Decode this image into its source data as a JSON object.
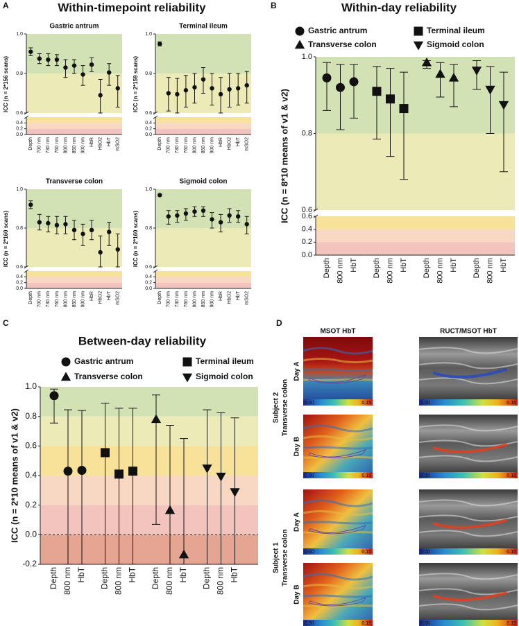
{
  "figure": {
    "panel_labels": [
      "A",
      "B",
      "C",
      "D"
    ],
    "group_title": "Within-timepoint reliability"
  },
  "chart_data": [
    {
      "type": "errorbar",
      "title": "Gastric antrum",
      "ylabel": "ICC (n = 2*156 scans)",
      "categories": [
        "Depth",
        "700 nm",
        "730 nm",
        "760 nm",
        "800 nm",
        "850 nm",
        "900 nm",
        "HbR",
        "HbO2",
        "HbT",
        "mSO2"
      ],
      "series": [
        {
          "marker": "circle",
          "color": "#111111",
          "values": [
            0.91,
            0.875,
            0.87,
            0.87,
            0.83,
            0.84,
            0.795,
            0.845,
            0.69,
            0.805,
            0.725
          ],
          "lower": [
            0.89,
            0.85,
            0.84,
            0.84,
            0.78,
            0.8,
            0.74,
            0.81,
            0.6,
            0.74,
            0.63
          ],
          "upper": [
            0.93,
            0.9,
            0.9,
            0.895,
            0.87,
            0.87,
            0.84,
            0.88,
            0.77,
            0.85,
            0.79
          ]
        }
      ],
      "ylim": [
        0.6,
        1
      ],
      "yticks": [
        0.6,
        0.8,
        {
          "value": 1,
          "label": "1.0"
        }
      ],
      "ylim_lower": [
        0,
        0.6
      ],
      "yticks_lower": [
        {
          "value": 0,
          "label": "0.0"
        },
        0.2,
        0.4
      ],
      "bands": [
        {
          "from": 0.8,
          "to": 1,
          "color": "#d2e2b4"
        },
        {
          "from": 0.6,
          "to": 0.8,
          "color": "#ecebb8"
        },
        {
          "from": 0.4,
          "to": 0.6,
          "color": "#f8e29a"
        },
        {
          "from": 0.2,
          "to": 0.4,
          "color": "#f8d8c2"
        },
        {
          "from": 0,
          "to": 0.2,
          "color": "#f2c4bd"
        }
      ]
    },
    {
      "type": "errorbar",
      "title": "Terminal ileum",
      "ylabel": "ICC (n = 2*159 scans)",
      "categories": [
        "Depth",
        "700 nm",
        "730 nm",
        "760 nm",
        "800 nm",
        "850 nm",
        "900 nm",
        "HbR",
        "HbO2",
        "HbT",
        "mSO2"
      ],
      "series": [
        {
          "marker": "circle",
          "color": "#111111",
          "values": [
            0.95,
            0.7,
            0.695,
            0.715,
            0.73,
            0.77,
            0.725,
            0.695,
            0.72,
            0.725,
            0.74
          ],
          "lower": [
            0.94,
            0.61,
            0.6,
            0.63,
            0.65,
            0.7,
            0.64,
            0.6,
            0.63,
            0.64,
            0.65
          ],
          "upper": [
            0.96,
            0.78,
            0.775,
            0.79,
            0.8,
            0.83,
            0.8,
            0.78,
            0.8,
            0.8,
            0.81
          ]
        }
      ],
      "ylim": [
        0.6,
        1
      ],
      "yticks": [
        0.6,
        0.8,
        {
          "value": 1,
          "label": "1.0"
        }
      ],
      "ylim_lower": [
        0,
        0.6
      ],
      "yticks_lower": [
        {
          "value": 0,
          "label": "0.0"
        },
        0.2,
        0.4
      ],
      "bands": [
        {
          "from": 0.8,
          "to": 1,
          "color": "#d2e2b4"
        },
        {
          "from": 0.6,
          "to": 0.8,
          "color": "#ecebb8"
        },
        {
          "from": 0.4,
          "to": 0.6,
          "color": "#f8e29a"
        },
        {
          "from": 0.2,
          "to": 0.4,
          "color": "#f8d8c2"
        },
        {
          "from": 0,
          "to": 0.2,
          "color": "#f2c4bd"
        }
      ]
    },
    {
      "type": "errorbar",
      "title": "Transverse colon",
      "ylabel": "ICC (n = 2*160 scans)",
      "categories": [
        "Depth",
        "700 nm",
        "730 nm",
        "760 nm",
        "800 nm",
        "850 nm",
        "900 nm",
        "HbR",
        "HbO2",
        "HbT",
        "mSO2"
      ],
      "series": [
        {
          "marker": "circle",
          "color": "#111111",
          "values": [
            0.92,
            0.83,
            0.825,
            0.815,
            0.82,
            0.79,
            0.77,
            0.79,
            0.675,
            0.78,
            0.69
          ],
          "lower": [
            0.9,
            0.79,
            0.78,
            0.77,
            0.77,
            0.74,
            0.71,
            0.74,
            0.6,
            0.71,
            0.6
          ],
          "upper": [
            0.94,
            0.87,
            0.86,
            0.86,
            0.86,
            0.84,
            0.82,
            0.84,
            0.76,
            0.83,
            0.77
          ]
        }
      ],
      "ylim": [
        0.6,
        1
      ],
      "yticks": [
        0.6,
        0.8,
        {
          "value": 1,
          "label": "1.0"
        }
      ],
      "ylim_lower": [
        0,
        0.6
      ],
      "yticks_lower": [
        {
          "value": 0,
          "label": "0.0"
        },
        0.2,
        0.4
      ],
      "bands": [
        {
          "from": 0.8,
          "to": 1,
          "color": "#d2e2b4"
        },
        {
          "from": 0.6,
          "to": 0.8,
          "color": "#ecebb8"
        },
        {
          "from": 0.4,
          "to": 0.6,
          "color": "#f8e29a"
        },
        {
          "from": 0.2,
          "to": 0.4,
          "color": "#f8d8c2"
        },
        {
          "from": 0,
          "to": 0.2,
          "color": "#f2c4bd"
        }
      ]
    },
    {
      "type": "errorbar",
      "title": "Sigmoid colon",
      "ylabel": "ICC (n = 2*160 scans)",
      "categories": [
        "Depth",
        "700 nm",
        "730 nm",
        "760 nm",
        "800 nm",
        "850 nm",
        "900 nm",
        "HbR",
        "HbO2",
        "HbT",
        "mSO2"
      ],
      "series": [
        {
          "marker": "circle",
          "color": "#111111",
          "values": [
            0.97,
            0.86,
            0.865,
            0.875,
            0.885,
            0.89,
            0.845,
            0.83,
            0.865,
            0.86,
            0.82
          ],
          "lower": [
            0.965,
            0.82,
            0.83,
            0.84,
            0.86,
            0.86,
            0.8,
            0.78,
            0.83,
            0.83,
            0.77
          ],
          "upper": [
            0.975,
            0.89,
            0.89,
            0.9,
            0.91,
            0.91,
            0.88,
            0.87,
            0.9,
            0.89,
            0.86
          ]
        }
      ],
      "ylim": [
        0.6,
        1
      ],
      "yticks": [
        0.6,
        0.8,
        {
          "value": 1,
          "label": "1.0"
        }
      ],
      "ylim_lower": [
        0,
        0.6
      ],
      "yticks_lower": [
        {
          "value": 0,
          "label": "0.0"
        },
        0.2,
        0.4
      ],
      "bands": [
        {
          "from": 0.8,
          "to": 1,
          "color": "#d2e2b4"
        },
        {
          "from": 0.6,
          "to": 0.8,
          "color": "#ecebb8"
        },
        {
          "from": 0.4,
          "to": 0.6,
          "color": "#f8e29a"
        },
        {
          "from": 0.2,
          "to": 0.4,
          "color": "#f8d8c2"
        },
        {
          "from": 0,
          "to": 0.2,
          "color": "#f2c4bd"
        }
      ]
    },
    {
      "type": "errorbar",
      "title": "Within-day reliability",
      "ylabel": "ICC (n = 8*10 means of v1 & v2)",
      "categories": [
        "Depth",
        "800 nm",
        "HbT"
      ],
      "legend": "top",
      "series": [
        {
          "name": "Gastric antrum",
          "marker": "circle",
          "color": "#111111",
          "values": [
            0.945,
            0.92,
            0.935
          ],
          "lower": [
            0.86,
            0.81,
            0.84
          ],
          "upper": [
            0.985,
            0.98,
            0.98
          ]
        },
        {
          "name": "Terminal ileum",
          "marker": "square",
          "color": "#111111",
          "values": [
            0.91,
            0.89,
            0.865
          ],
          "lower": [
            0.785,
            0.74,
            0.68
          ],
          "upper": [
            0.975,
            0.97,
            0.96
          ]
        },
        {
          "name": "Transverse colon",
          "marker": "triangle",
          "color": "#111111",
          "values": [
            0.985,
            0.955,
            0.945
          ],
          "lower": [
            0.97,
            0.895,
            0.87
          ],
          "upper": [
            0.99,
            0.985,
            0.98
          ]
        },
        {
          "name": "Sigmoid colon",
          "marker": "triangle-down",
          "color": "#111111",
          "values": [
            0.965,
            0.915,
            0.875
          ],
          "lower": [
            0.915,
            0.8,
            0.7
          ],
          "upper": [
            0.99,
            0.975,
            0.96
          ]
        }
      ],
      "ylim": [
        0.6,
        1
      ],
      "yticks": [
        0.6,
        0.8,
        {
          "value": 1,
          "label": "1.0"
        }
      ],
      "ylim_lower": [
        0,
        0.6
      ],
      "yticks_lower": [
        {
          "value": 0,
          "label": "0.0"
        },
        0.2,
        0.4,
        0.6
      ],
      "bands": [
        {
          "from": 0.8,
          "to": 1,
          "color": "#d2e2b4"
        },
        {
          "from": 0.6,
          "to": 0.8,
          "color": "#ecebb8"
        },
        {
          "from": 0.4,
          "to": 0.6,
          "color": "#f8e29a"
        },
        {
          "from": 0.2,
          "to": 0.4,
          "color": "#f8d8c2"
        },
        {
          "from": 0,
          "to": 0.2,
          "color": "#f2c4bd"
        }
      ]
    },
    {
      "type": "errorbar",
      "title": "Between-day reliability",
      "ylabel": "ICC (n = 2*10 means of v1 & v2)",
      "categories": [
        "Depth",
        "800 nm",
        "HbT"
      ],
      "legend": "top",
      "series": [
        {
          "name": "Gastric antrum",
          "marker": "circle",
          "color": "#111111",
          "values": [
            0.94,
            0.43,
            0.435
          ],
          "lower": [
            0.755,
            -0.2,
            -0.2
          ],
          "upper": [
            0.985,
            0.845,
            0.84
          ]
        },
        {
          "name": "Terminal ileum",
          "marker": "square",
          "color": "#111111",
          "values": [
            0.555,
            0.41,
            0.43
          ],
          "lower": [
            -0.2,
            -0.2,
            -0.2
          ],
          "upper": [
            0.89,
            0.855,
            0.855
          ]
        },
        {
          "name": "Transverse colon",
          "marker": "triangle",
          "color": "#111111",
          "values": [
            0.78,
            0.165,
            -0.135
          ],
          "lower": [
            0.07,
            -0.2,
            -0.2
          ],
          "upper": [
            0.945,
            0.74,
            0.65
          ]
        },
        {
          "name": "Sigmoid colon",
          "marker": "triangle-down",
          "color": "#111111",
          "values": [
            0.45,
            0.395,
            0.29
          ],
          "lower": [
            -0.2,
            -0.2,
            -0.2
          ],
          "upper": [
            0.845,
            0.825,
            0.79
          ]
        }
      ],
      "ylim": [
        -0.2,
        1
      ],
      "yticks": [
        -0.2,
        {
          "value": 0,
          "label": "0.0"
        },
        0.2,
        0.4,
        0.6,
        0.8,
        {
          "value": 1,
          "label": "1.0"
        }
      ],
      "reference_line": {
        "value": 0,
        "style": "dashed"
      },
      "bands": [
        {
          "from": 0.8,
          "to": 1,
          "color": "#d2e2b4"
        },
        {
          "from": 0.6,
          "to": 0.8,
          "color": "#ecebb8"
        },
        {
          "from": 0.4,
          "to": 0.6,
          "color": "#f8e29a"
        },
        {
          "from": 0.2,
          "to": 0.4,
          "color": "#f8d8c2"
        },
        {
          "from": 0,
          "to": 0.2,
          "color": "#f2c4bd"
        },
        {
          "from": -0.2,
          "to": 0,
          "color": "#e6a493"
        }
      ]
    }
  ],
  "panel_d": {
    "columns": [
      "MSOT HbT",
      "RUCT/MSOT HbT"
    ],
    "rows": [
      {
        "subject": "Subject 2",
        "site": "Transverse colon",
        "days": [
          "Day A",
          "Day B"
        ]
      },
      {
        "subject": "Subject 1",
        "site": "Transverse colon",
        "days": [
          "Day A",
          "Day B"
        ]
      }
    ],
    "colorbar": [
      {
        "value": 0,
        "label": "0.00"
      },
      {
        "value": 0.15,
        "label": "0.15"
      }
    ]
  }
}
